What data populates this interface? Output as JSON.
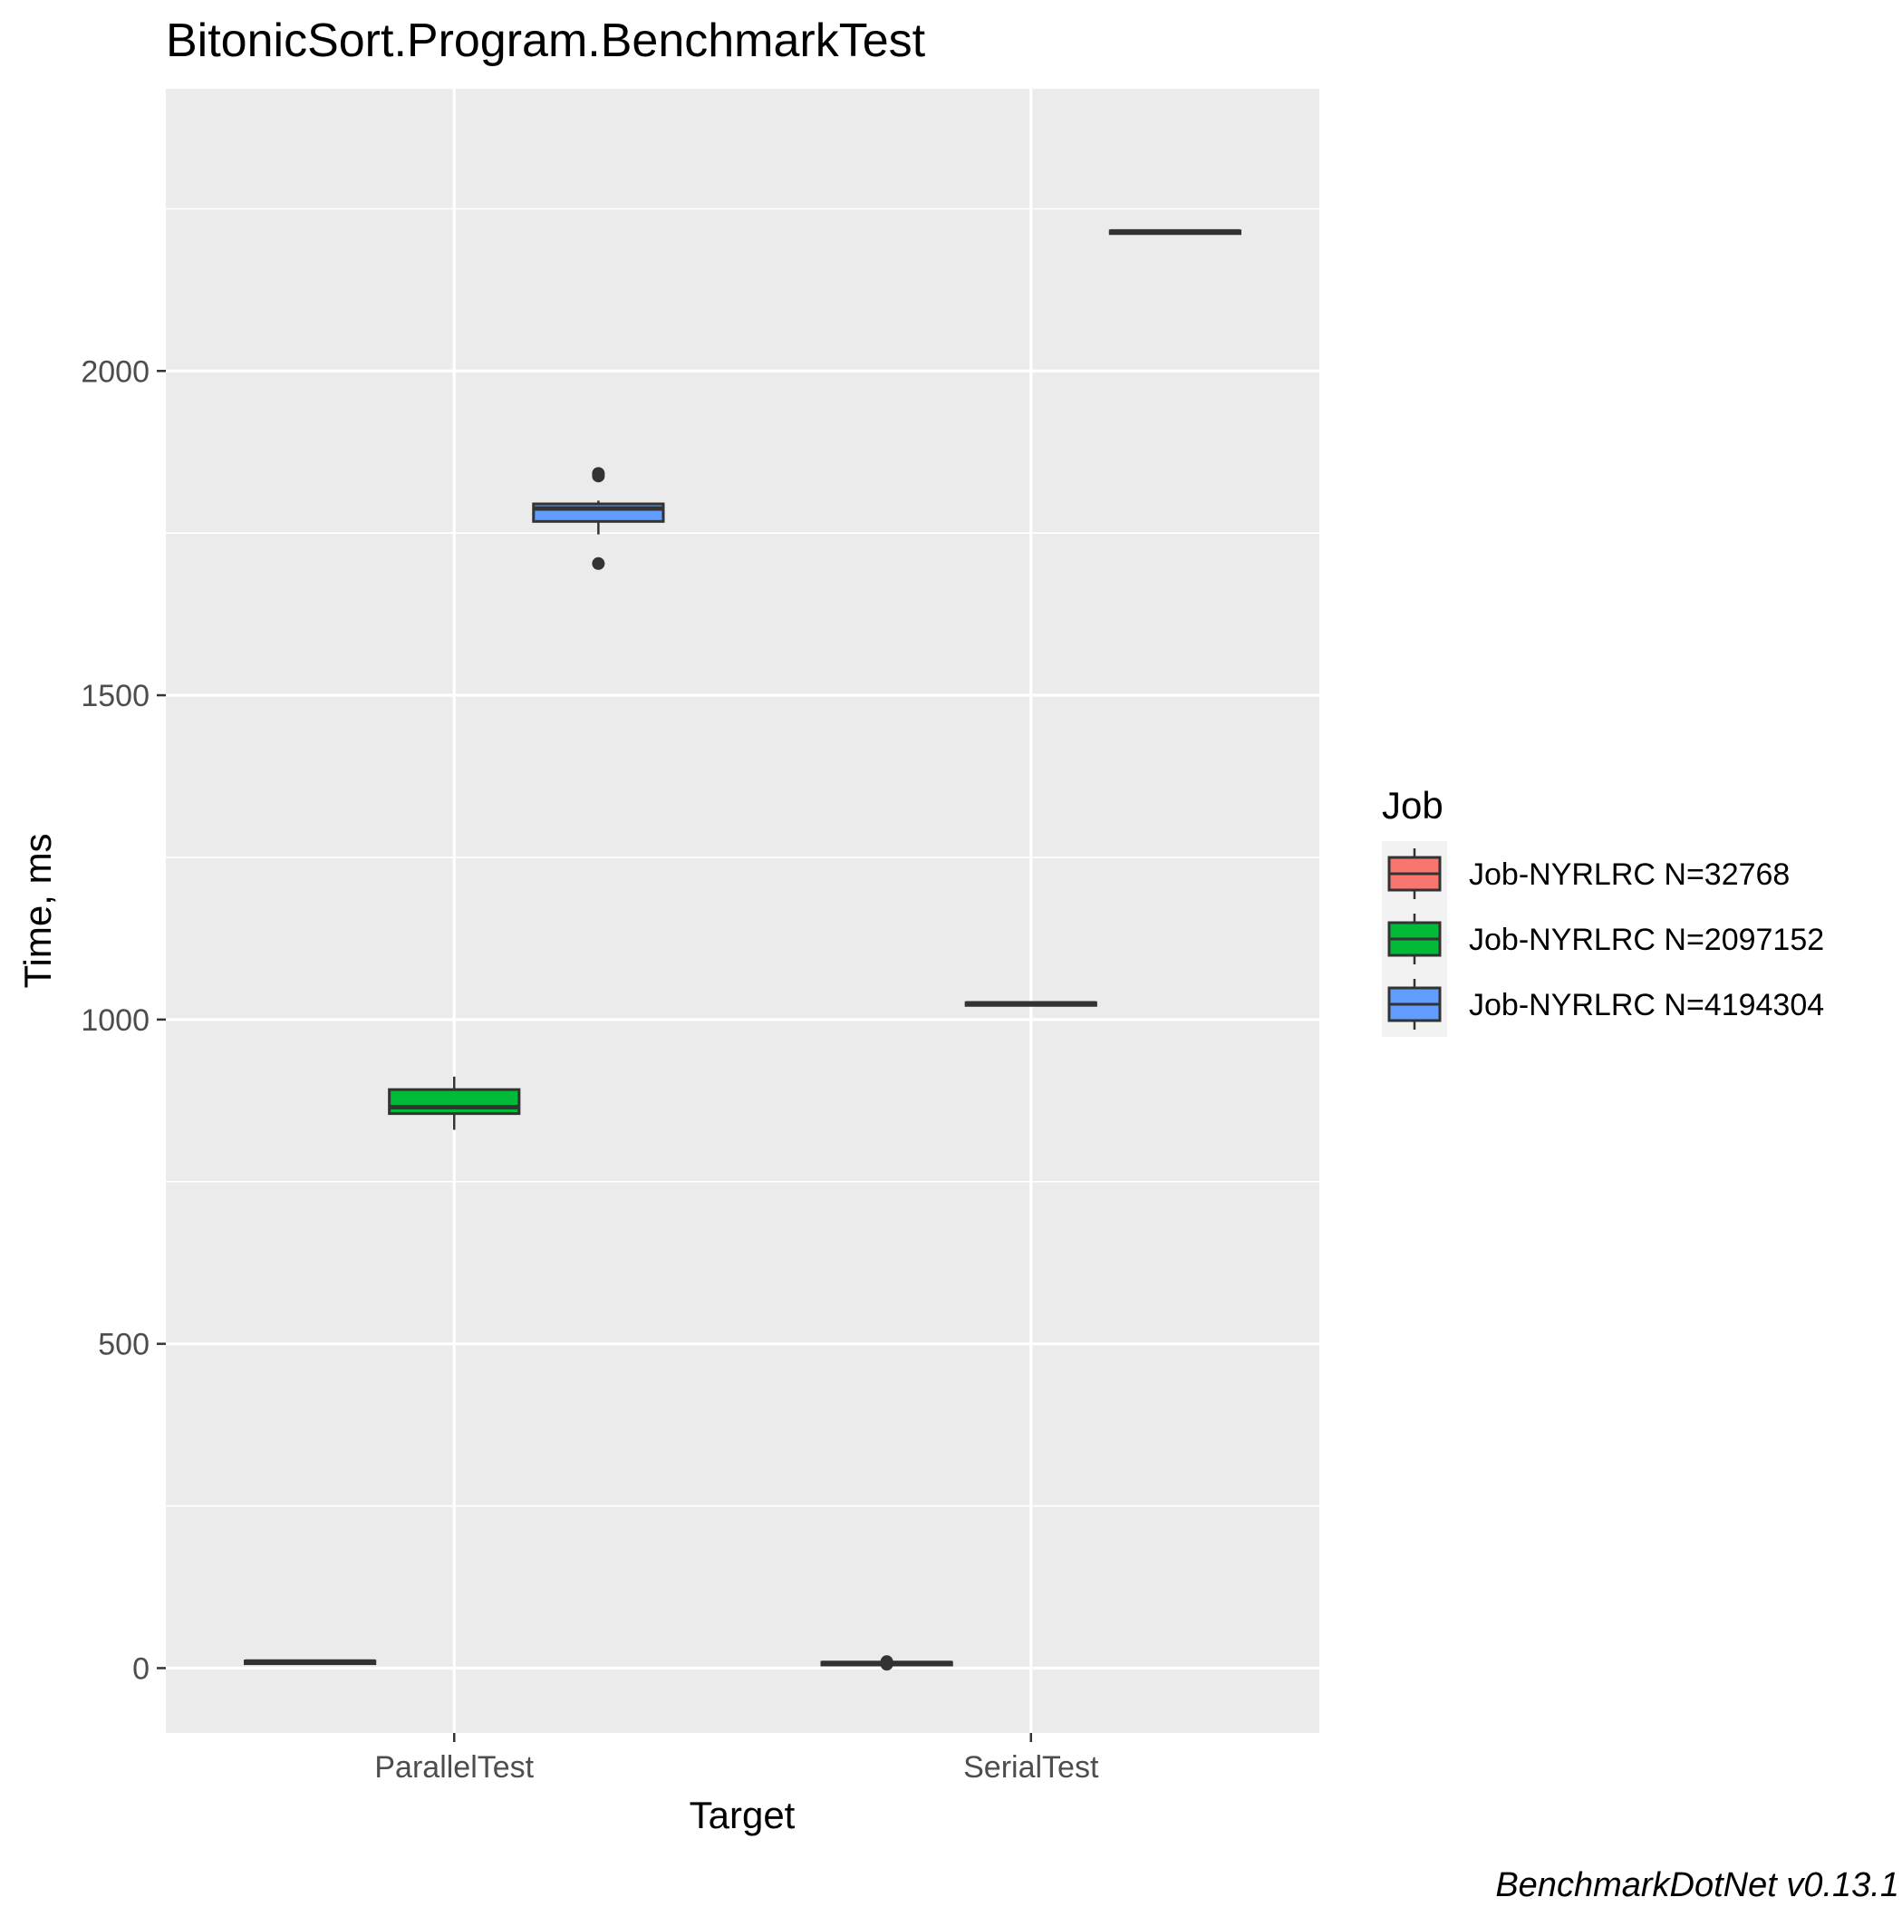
{
  "chart_data": {
    "type": "box",
    "title": "BitonicSort.Program.BenchmarkTest",
    "xlabel": "Target",
    "ylabel": "Time, ms",
    "caption": "BenchmarkDotNet v0.13.1",
    "categories": [
      "ParallelTest",
      "SerialTest"
    ],
    "ylim": [
      -100,
      2435
    ],
    "yticks": [
      0,
      500,
      1000,
      1500,
      2000
    ],
    "ytick_labels": [
      "0",
      "500",
      "1000",
      "1500",
      "2000"
    ],
    "grid": true,
    "legend": {
      "title": "Job",
      "position": "right",
      "entries": [
        "Job-NYRLRC N=32768",
        "Job-NYRLRC N=2097152",
        "Job-NYRLRC N=4194304"
      ]
    },
    "series": [
      {
        "name": "Job-NYRLRC N=32768",
        "color": "#F8766D",
        "boxes": [
          {
            "category": "ParallelTest",
            "min": 9,
            "q1": 9,
            "median": 10,
            "q3": 11,
            "max": 11,
            "outliers": []
          },
          {
            "category": "SerialTest",
            "min": 7,
            "q1": 7,
            "median": 8,
            "q3": 9,
            "max": 9,
            "outliers": [
              6,
              10
            ]
          }
        ]
      },
      {
        "name": "Job-NYRLRC N=2097152",
        "color": "#00BA38",
        "boxes": [
          {
            "category": "ParallelTest",
            "min": 830,
            "q1": 855,
            "median": 865,
            "q3": 892,
            "max": 912,
            "outliers": []
          },
          {
            "category": "SerialTest",
            "min": 1023,
            "q1": 1024,
            "median": 1025,
            "q3": 1026,
            "max": 1027,
            "outliers": []
          }
        ]
      },
      {
        "name": "Job-NYRLRC N=4194304",
        "color": "#619CFF",
        "boxes": [
          {
            "category": "ParallelTest",
            "min": 1748,
            "q1": 1768,
            "median": 1788,
            "q3": 1795,
            "max": 1800,
            "outliers": [
              1703,
              1838,
              1842
            ]
          },
          {
            "category": "SerialTest",
            "min": 2213,
            "q1": 2214,
            "median": 2215,
            "q3": 2216,
            "max": 2217,
            "outliers": []
          }
        ]
      }
    ]
  }
}
